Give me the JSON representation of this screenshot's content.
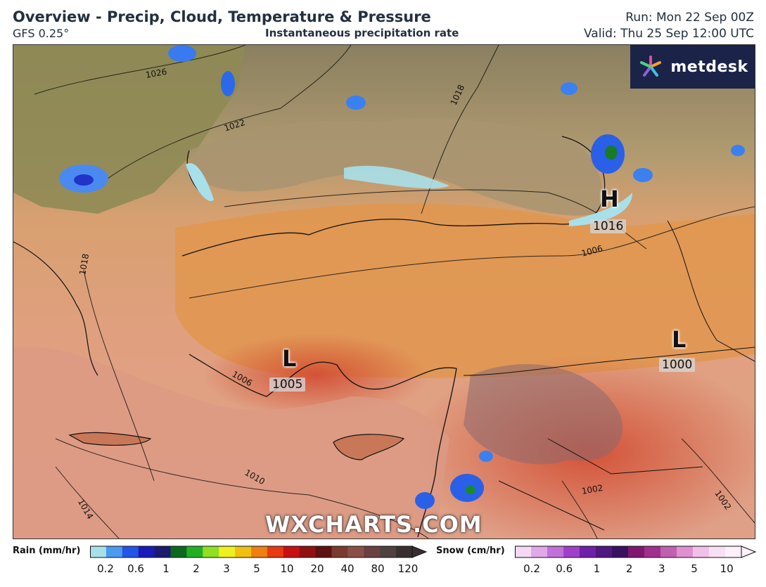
{
  "header": {
    "title": "Overview - Precip, Cloud, Temperature & Pressure",
    "model": "GFS 0.25°",
    "subtitle": "Instantaneous precipitation rate",
    "run": "Run: Mon 22 Sep 00Z",
    "valid": "Valid: Thu 25 Sep 12:00 UTC"
  },
  "logo": {
    "text": "metdesk",
    "icon": "metdesk-star-icon"
  },
  "watermark": "WXCHARTS.COM",
  "pressure_centers": [
    {
      "type": "H",
      "value": "1016"
    },
    {
      "type": "L",
      "value": "1005"
    },
    {
      "type": "L",
      "value": "1000"
    }
  ],
  "isobar_labels": [
    "1026",
    "1022",
    "1018",
    "1018",
    "1006",
    "1006",
    "1010",
    "1014",
    "1002",
    "1002"
  ],
  "legend": {
    "rain": {
      "label": "Rain (mm/hr)",
      "ticks": [
        "0.2",
        "0.6",
        "1",
        "2",
        "3",
        "5",
        "10",
        "20",
        "40",
        "80",
        "120"
      ],
      "colors": [
        "#a8e0ea",
        "#4a9af0",
        "#2255e8",
        "#1a1ab8",
        "#1a1a70",
        "#0a6a1a",
        "#22b022",
        "#8ee020",
        "#f0f020",
        "#f0c010",
        "#f08010",
        "#e83a10",
        "#c81010",
        "#901010",
        "#601010",
        "#7a3a30",
        "#8a5048",
        "#6a4040",
        "#504040",
        "#383030"
      ]
    },
    "snow": {
      "label": "Snow (cm/hr)",
      "ticks": [
        "0.2",
        "0.6",
        "1",
        "2",
        "3",
        "5",
        "10"
      ],
      "colors": [
        "#f4d8f4",
        "#e0a8e8",
        "#c070d8",
        "#a040c8",
        "#7020a8",
        "#501880",
        "#3a1060",
        "#801870",
        "#a03090",
        "#c060b0",
        "#e090d0",
        "#f0c0e8",
        "#f8e0f4",
        "#fcf0fa"
      ]
    }
  }
}
